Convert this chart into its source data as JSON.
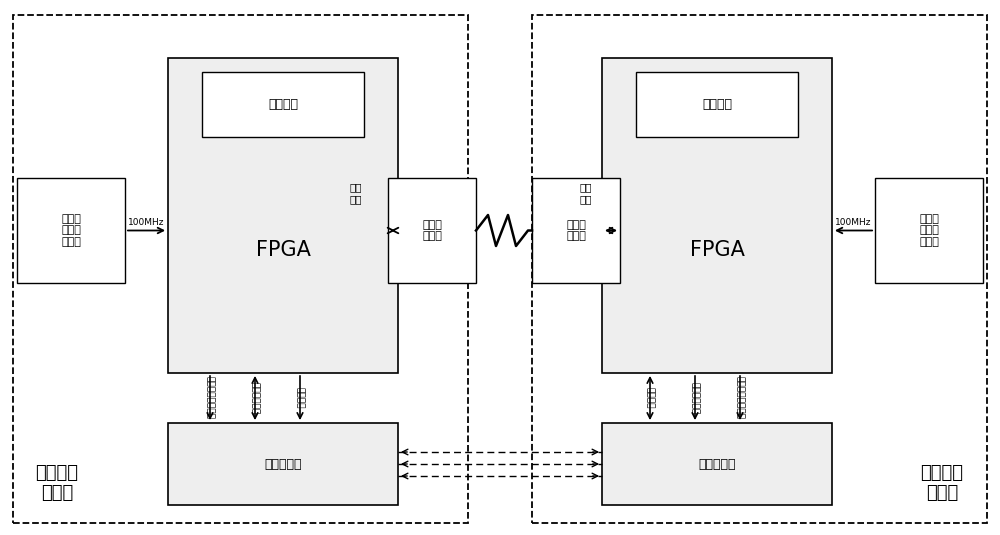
{
  "bg_color": "#ffffff",
  "fig_width": 10.0,
  "fig_height": 5.35,
  "dpi": 100,
  "system1_label": "第一雷达\n子系统",
  "system2_label": "第二雷达\n子系统",
  "left_fpga_label": "FPGA",
  "right_fpga_label": "FPGA",
  "left_dispatch_label": "调度模块",
  "right_dispatch_label": "调度模块",
  "left_crystal_label": "温度补\n偿晶体\n振荡器",
  "right_crystal_label": "温度补\n偿晶体\n振荡器",
  "left_wireless_label": "无线透\n传模块",
  "right_wireless_label": "无线透\n传模块",
  "left_radar_label": "毫米波雷达",
  "right_radar_label": "毫米波雷达",
  "left_100mhz": "100MHz",
  "right_100mhz": "100MHz",
  "left_serial": "串口\n通信",
  "right_serial": "串口\n通信",
  "label_vert_left": [
    "雷达同步触发脉冲",
    "雷达辐射开关",
    "串口通信"
  ],
  "label_vert_right": [
    "串口通信",
    "雷达辐射开关",
    "雷达同步触发脉冲"
  ]
}
